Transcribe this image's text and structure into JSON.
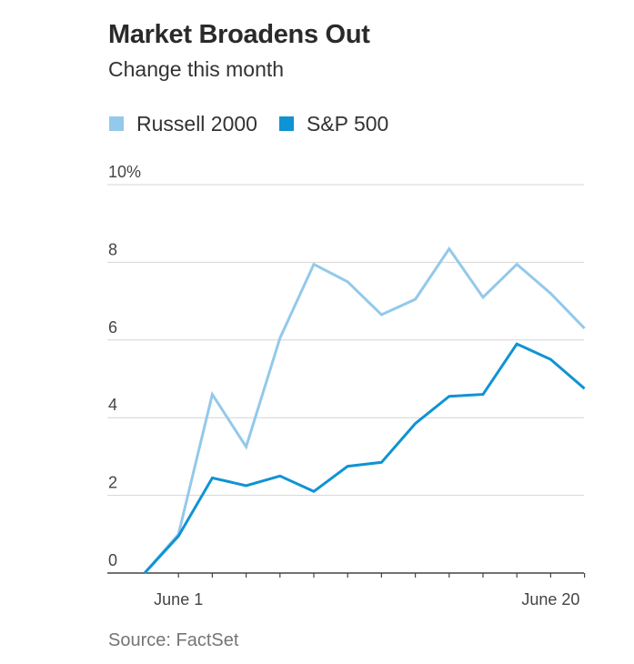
{
  "chart_data": {
    "type": "line",
    "title": "Market Broadens Out",
    "subtitle": "Change this month",
    "source": "Source: FactSet",
    "y_ticks": [
      {
        "value": 0,
        "label": "0"
      },
      {
        "value": 2,
        "label": "2"
      },
      {
        "value": 4,
        "label": "4"
      },
      {
        "value": 6,
        "label": "6"
      },
      {
        "value": 8,
        "label": "8"
      },
      {
        "value": 10,
        "label": "10%"
      }
    ],
    "ylim": [
      0,
      10
    ],
    "x_labels": [
      {
        "index": 1,
        "label": "June 1"
      },
      {
        "index": 12,
        "label": "June 20"
      }
    ],
    "x_count": 14,
    "grid": true,
    "legend_position": "top-left",
    "series": [
      {
        "name": "Russell 2000",
        "color": "#93c9ea",
        "values": [
          0,
          1.0,
          4.6,
          3.25,
          6.05,
          7.95,
          7.5,
          6.65,
          7.05,
          8.35,
          7.1,
          7.95,
          7.2,
          6.3
        ]
      },
      {
        "name": "S&P 500",
        "color": "#0f93d4",
        "values": [
          0,
          0.95,
          2.45,
          2.25,
          2.5,
          2.1,
          2.75,
          2.85,
          3.85,
          4.55,
          4.6,
          5.9,
          5.5,
          4.75
        ]
      }
    ]
  }
}
